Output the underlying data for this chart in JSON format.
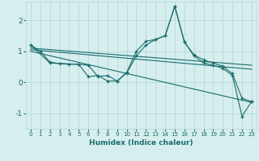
{
  "xlabel": "Humidex (Indice chaleur)",
  "background_color": "#d6eeee",
  "grid_color": "#b8d8d8",
  "line_color": "#1a6b6b",
  "xlim": [
    -0.5,
    23.5
  ],
  "ylim": [
    -1.5,
    2.6
  ],
  "yticks": [
    -1,
    0,
    1,
    2
  ],
  "xticks": [
    0,
    1,
    2,
    3,
    4,
    5,
    6,
    7,
    8,
    9,
    10,
    11,
    12,
    13,
    14,
    15,
    16,
    17,
    18,
    19,
    20,
    21,
    22,
    23
  ],
  "series": [
    {
      "x": [
        0,
        1,
        2,
        3,
        4,
        5,
        6,
        7,
        8,
        9,
        10,
        11,
        12,
        13,
        14,
        15,
        16,
        17,
        18,
        19,
        20,
        21,
        22,
        23
      ],
      "y": [
        1.2,
        1.0,
        0.65,
        0.6,
        0.58,
        0.58,
        0.55,
        0.18,
        0.22,
        0.04,
        0.32,
        1.0,
        1.32,
        1.38,
        1.5,
        2.45,
        1.3,
        0.88,
        0.72,
        0.62,
        0.52,
        0.28,
        -0.52,
        -0.62
      ],
      "marker": true
    },
    {
      "x": [
        0,
        2,
        5,
        6,
        7,
        8,
        9,
        10,
        11,
        12,
        13,
        14,
        15,
        16,
        17,
        18,
        19,
        20,
        21,
        22,
        23
      ],
      "y": [
        1.2,
        0.62,
        0.58,
        0.18,
        0.22,
        0.04,
        0.04,
        0.3,
        0.85,
        1.2,
        1.38,
        1.5,
        2.45,
        1.3,
        0.85,
        0.62,
        0.55,
        0.45,
        0.22,
        -1.1,
        -0.62
      ],
      "marker": true
    },
    {
      "x": [
        0,
        23
      ],
      "y": [
        1.1,
        0.55
      ],
      "marker": false
    },
    {
      "x": [
        0,
        23
      ],
      "y": [
        1.05,
        0.42
      ],
      "marker": false
    },
    {
      "x": [
        0,
        23
      ],
      "y": [
        1.0,
        -0.65
      ],
      "marker": false
    }
  ]
}
